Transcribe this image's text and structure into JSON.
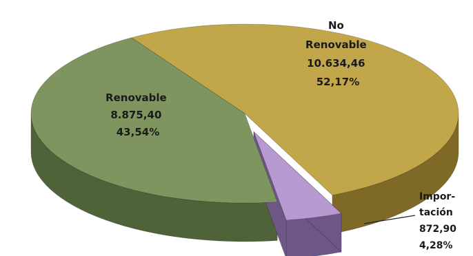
{
  "chart_data": {
    "type": "pie",
    "three_d": true,
    "exploded": [
      "Importación"
    ],
    "legend": "none",
    "slices": [
      {
        "name": "No Renovable",
        "value": 10634.46,
        "percent": 52.17,
        "color": "#c2a64a",
        "side_color": "#7e6a26",
        "label_lines": [
          "No",
          "Renovable",
          "10.634,46",
          "52,17%"
        ]
      },
      {
        "name": "Importación",
        "value": 872.9,
        "percent": 4.28,
        "color": "#b79ad0",
        "side_color": "#6d5787",
        "label_lines": [
          "Impor-",
          "tación",
          "872,90",
          "4,28%"
        ]
      },
      {
        "name": "Renovable",
        "value": 8875.4,
        "percent": 43.54,
        "color": "#7e9560",
        "side_color": "#4f6338",
        "label_lines": [
          "Renovable",
          "8.875,40",
          "43,54%"
        ]
      }
    ]
  }
}
